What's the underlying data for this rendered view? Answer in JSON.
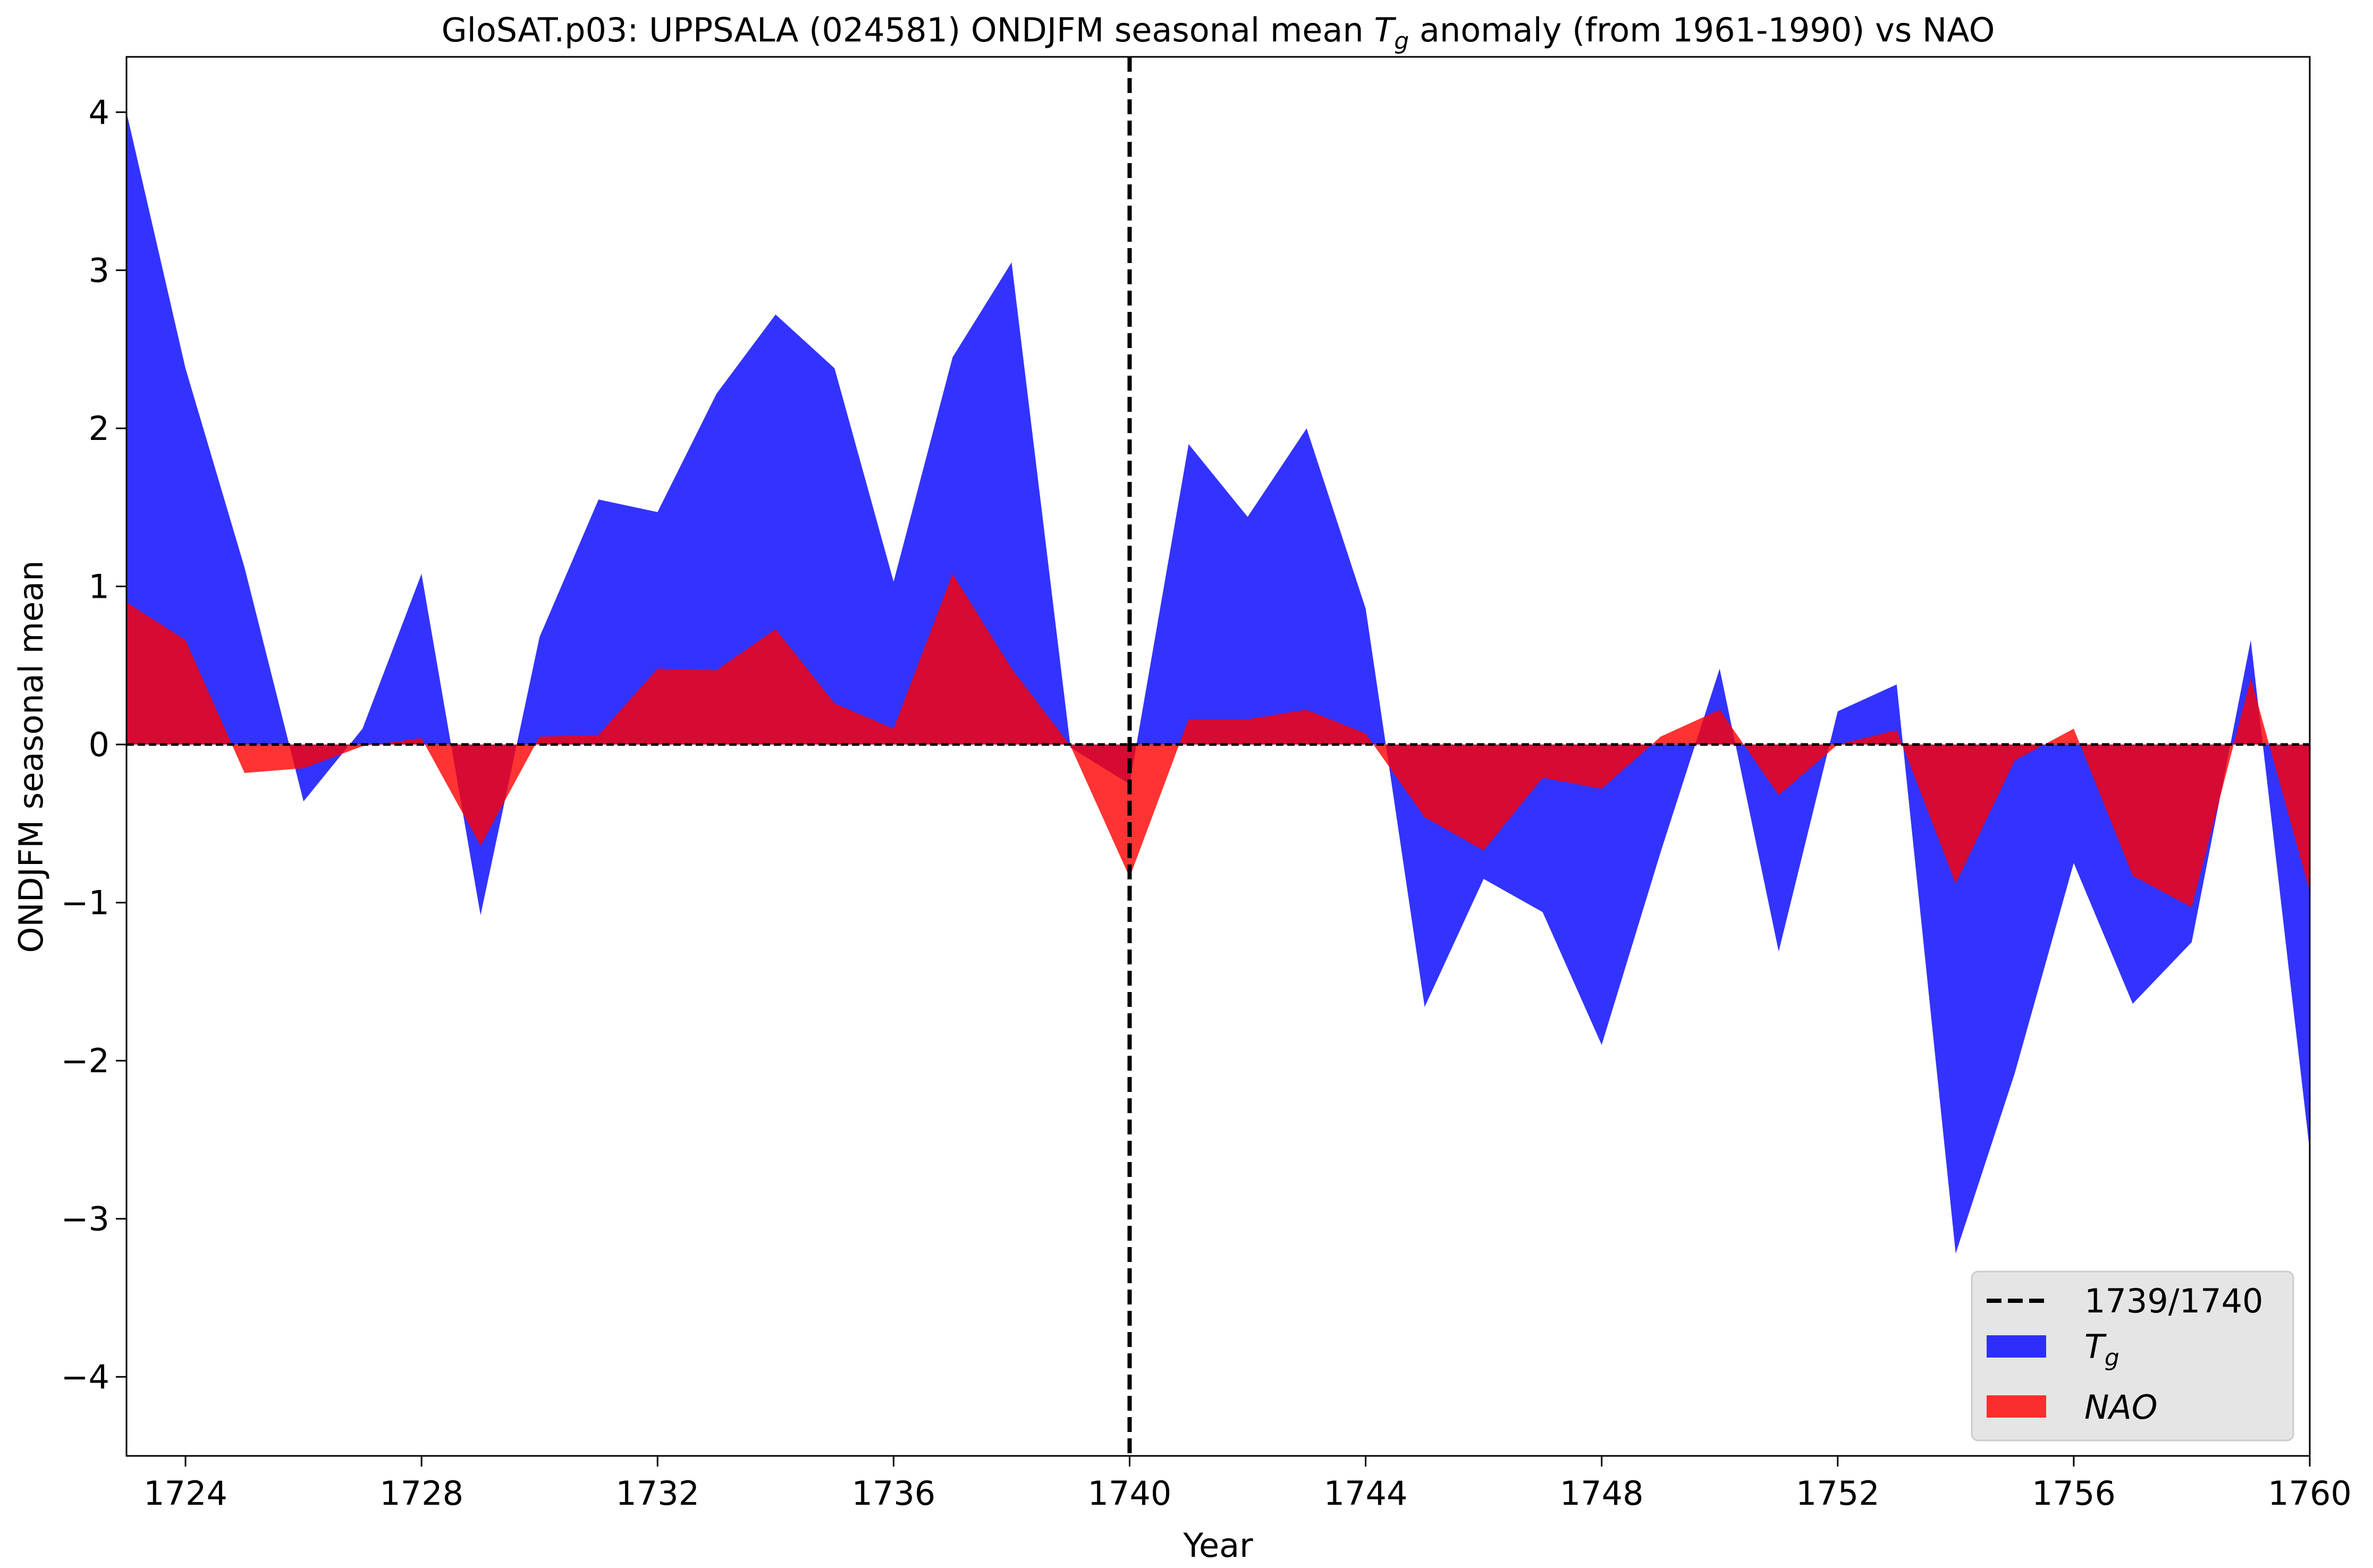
{
  "chart_data": {
    "type": "area",
    "title_main": "GloSAT.p03: UPPSALA (024581) ONDJFM seasonal mean ",
    "title_sym": "T",
    "title_sub": "g",
    "title_rest": " anomaly (from 1961-1990) vs NAO",
    "xlabel": "Year",
    "ylabel": "ONDJFM seasonal mean",
    "xlim": [
      1723,
      1760
    ],
    "ylim": [
      -4.5,
      4.35
    ],
    "x_ticks": [
      1724,
      1728,
      1732,
      1736,
      1740,
      1744,
      1748,
      1752,
      1756,
      1760
    ],
    "y_ticks": [
      4,
      3,
      2,
      1,
      0,
      -1,
      -2,
      -3,
      -4
    ],
    "y_tick_labels": [
      "4",
      "3",
      "2",
      "1",
      "0",
      "−1",
      "−2",
      "−3",
      "−4"
    ],
    "grid": false,
    "vline": {
      "x": 1740,
      "label": "1739/1740",
      "color": "#000000",
      "style": "dashed"
    },
    "zero_line": true,
    "legend_position": "lower-right",
    "x": [
      1723,
      1724,
      1725,
      1726,
      1727,
      1728,
      1729,
      1730,
      1731,
      1732,
      1733,
      1734,
      1735,
      1736,
      1737,
      1738,
      1739,
      1740,
      1741,
      1742,
      1743,
      1744,
      1745,
      1746,
      1747,
      1748,
      1749,
      1750,
      1751,
      1752,
      1753,
      1754,
      1755,
      1756,
      1757,
      1758,
      1759,
      1760
    ],
    "series": [
      {
        "name_sym": "T",
        "name_sub": "g",
        "color": "#0000ff",
        "values": [
          4.0,
          2.38,
          1.12,
          -0.36,
          0.1,
          1.08,
          -1.08,
          0.68,
          1.55,
          1.47,
          2.22,
          2.72,
          2.38,
          1.03,
          2.45,
          3.05,
          -0.02,
          -0.25,
          1.9,
          1.44,
          2.0,
          0.86,
          -1.66,
          -0.85,
          -1.06,
          -1.9,
          -0.68,
          0.48,
          -1.31,
          0.21,
          0.38,
          -3.22,
          -2.08,
          -0.75,
          -1.64,
          -1.25,
          0.66,
          -2.57
        ]
      },
      {
        "name": "NAO",
        "color": "#ff0000",
        "values": [
          0.9,
          0.66,
          -0.18,
          -0.15,
          -0.01,
          0.04,
          -0.64,
          0.05,
          0.06,
          0.48,
          0.47,
          0.73,
          0.26,
          0.1,
          1.08,
          0.48,
          -0.01,
          -0.84,
          0.16,
          0.16,
          0.22,
          0.07,
          -0.46,
          -0.67,
          -0.21,
          -0.28,
          0.05,
          0.22,
          -0.32,
          0.0,
          0.09,
          -0.88,
          -0.1,
          0.1,
          -0.83,
          -1.03,
          0.42,
          -0.93
        ]
      }
    ],
    "legend_bg": "#e5e5e5"
  }
}
